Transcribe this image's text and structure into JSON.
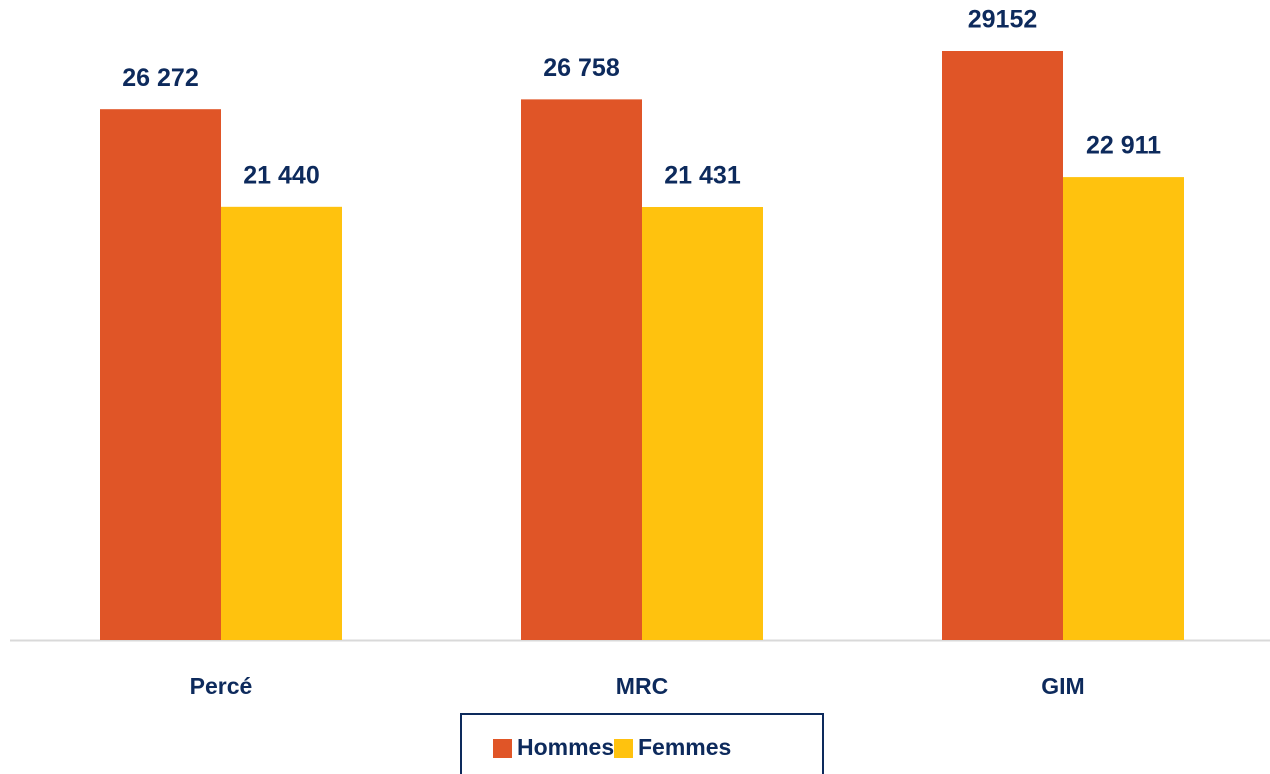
{
  "chart_data": {
    "type": "bar",
    "categories": [
      "Percé",
      "MRC",
      "GIM"
    ],
    "series": [
      {
        "name": "Hommes",
        "color": "#e05527",
        "values": [
          26272,
          26758,
          29152
        ],
        "value_labels": [
          "26 272",
          "26 758",
          "29152"
        ]
      },
      {
        "name": "Femmes",
        "color": "#ffc20e",
        "values": [
          21440,
          21431,
          22911
        ],
        "value_labels": [
          "21 440",
          "21 431",
          "22 911"
        ]
      }
    ],
    "legend": "bottom"
  }
}
